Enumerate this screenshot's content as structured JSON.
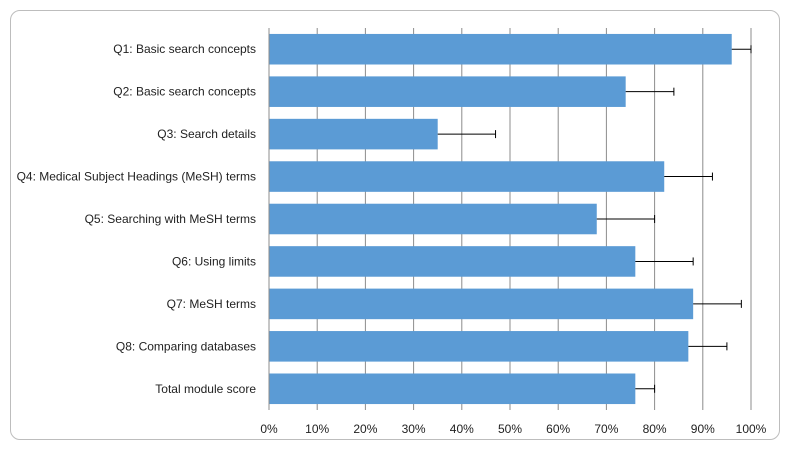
{
  "chart_data": {
    "type": "bar",
    "orientation": "horizontal",
    "categories": [
      "Q1: Basic search concepts",
      "Q2: Basic search concepts",
      "Q3: Search details",
      "Q4: Medical Subject Headings (MeSH) terms",
      "Q5: Searching with MeSH terms",
      "Q6: Using limits",
      "Q7: MeSH terms",
      "Q8: Comparing databases",
      "Total module score"
    ],
    "values": [
      96,
      74,
      35,
      82,
      68,
      76,
      88,
      87,
      76
    ],
    "error_upper": [
      4,
      10,
      12,
      10,
      12,
      12,
      10,
      8,
      4
    ],
    "xlim": [
      0,
      100
    ],
    "xticks": [
      0,
      10,
      20,
      30,
      40,
      50,
      60,
      70,
      80,
      90,
      100
    ],
    "xtick_labels": [
      "0%",
      "10%",
      "20%",
      "30%",
      "40%",
      "50%",
      "60%",
      "70%",
      "80%",
      "90%",
      "100%"
    ],
    "grid": true,
    "bar_color": "#5b9bd5",
    "title": "",
    "xlabel": "",
    "ylabel": ""
  }
}
